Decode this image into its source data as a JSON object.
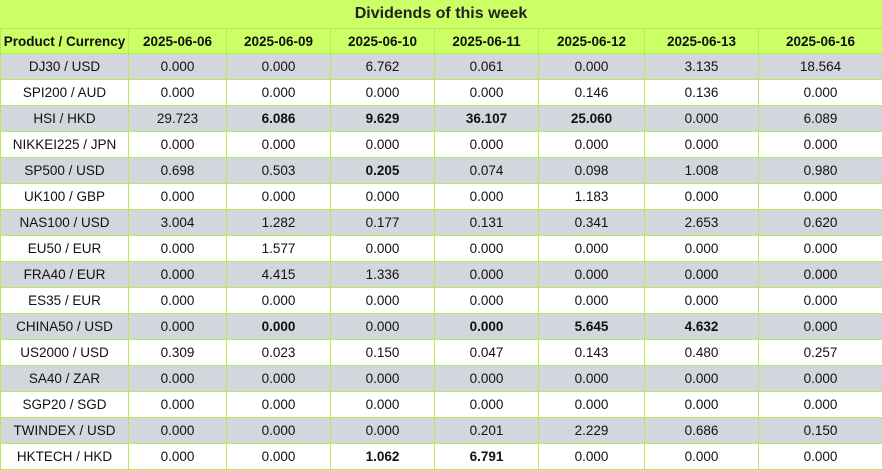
{
  "title": "Dividends of this week",
  "columns": [
    "Product / Currency",
    "2025-06-06",
    "2025-06-09",
    "2025-06-10",
    "2025-06-11",
    "2025-06-12",
    "2025-06-13",
    "2025-06-16"
  ],
  "rows": [
    {
      "product": "DJ30 / USD",
      "values": [
        "0.000",
        "0.000",
        "6.762",
        "0.061",
        "0.000",
        "3.135",
        "18.564"
      ],
      "bold": [
        false,
        false,
        false,
        false,
        false,
        false,
        false
      ]
    },
    {
      "product": "SPI200 / AUD",
      "values": [
        "0.000",
        "0.000",
        "0.000",
        "0.000",
        "0.146",
        "0.136",
        "0.000"
      ],
      "bold": [
        false,
        false,
        false,
        false,
        false,
        false,
        false
      ]
    },
    {
      "product": "HSI / HKD",
      "values": [
        "29.723",
        "6.086",
        "9.629",
        "36.107",
        "25.060",
        "0.000",
        "6.089"
      ],
      "bold": [
        false,
        true,
        true,
        true,
        true,
        false,
        false
      ]
    },
    {
      "product": "NIKKEI225 / JPN",
      "values": [
        "0.000",
        "0.000",
        "0.000",
        "0.000",
        "0.000",
        "0.000",
        "0.000"
      ],
      "bold": [
        false,
        false,
        false,
        false,
        false,
        false,
        false
      ]
    },
    {
      "product": "SP500 / USD",
      "values": [
        "0.698",
        "0.503",
        "0.205",
        "0.074",
        "0.098",
        "1.008",
        "0.980"
      ],
      "bold": [
        false,
        false,
        true,
        false,
        false,
        false,
        false
      ]
    },
    {
      "product": "UK100 / GBP",
      "values": [
        "0.000",
        "0.000",
        "0.000",
        "0.000",
        "1.183",
        "0.000",
        "0.000"
      ],
      "bold": [
        false,
        false,
        false,
        false,
        false,
        false,
        false
      ]
    },
    {
      "product": "NAS100 / USD",
      "values": [
        "3.004",
        "1.282",
        "0.177",
        "0.131",
        "0.341",
        "2.653",
        "0.620"
      ],
      "bold": [
        false,
        false,
        false,
        false,
        false,
        false,
        false
      ]
    },
    {
      "product": "EU50 / EUR",
      "values": [
        "0.000",
        "1.577",
        "0.000",
        "0.000",
        "0.000",
        "0.000",
        "0.000"
      ],
      "bold": [
        false,
        false,
        false,
        false,
        false,
        false,
        false
      ]
    },
    {
      "product": "FRA40 / EUR",
      "values": [
        "0.000",
        "4.415",
        "1.336",
        "0.000",
        "0.000",
        "0.000",
        "0.000"
      ],
      "bold": [
        false,
        false,
        false,
        false,
        false,
        false,
        false
      ]
    },
    {
      "product": "ES35 / EUR",
      "values": [
        "0.000",
        "0.000",
        "0.000",
        "0.000",
        "0.000",
        "0.000",
        "0.000"
      ],
      "bold": [
        false,
        false,
        false,
        false,
        false,
        false,
        false
      ]
    },
    {
      "product": "CHINA50 / USD",
      "values": [
        "0.000",
        "0.000",
        "0.000",
        "0.000",
        "5.645",
        "4.632",
        "0.000"
      ],
      "bold": [
        false,
        true,
        false,
        true,
        true,
        true,
        false
      ]
    },
    {
      "product": "US2000 / USD",
      "values": [
        "0.309",
        "0.023",
        "0.150",
        "0.047",
        "0.143",
        "0.480",
        "0.257"
      ],
      "bold": [
        false,
        false,
        false,
        false,
        false,
        false,
        false
      ]
    },
    {
      "product": "SA40 / ZAR",
      "values": [
        "0.000",
        "0.000",
        "0.000",
        "0.000",
        "0.000",
        "0.000",
        "0.000"
      ],
      "bold": [
        false,
        false,
        false,
        false,
        false,
        false,
        false
      ]
    },
    {
      "product": "SGP20 / SGD",
      "values": [
        "0.000",
        "0.000",
        "0.000",
        "0.000",
        "0.000",
        "0.000",
        "0.000"
      ],
      "bold": [
        false,
        false,
        false,
        false,
        false,
        false,
        false
      ]
    },
    {
      "product": "TWINDEX / USD",
      "values": [
        "0.000",
        "0.000",
        "0.000",
        "0.201",
        "2.229",
        "0.686",
        "0.150"
      ],
      "bold": [
        false,
        false,
        false,
        false,
        false,
        false,
        false
      ]
    },
    {
      "product": "HKTECH / HKD",
      "values": [
        "0.000",
        "0.000",
        "1.062",
        "6.791",
        "0.000",
        "0.000",
        "0.000"
      ],
      "bold": [
        false,
        false,
        true,
        true,
        false,
        false,
        false
      ]
    }
  ]
}
